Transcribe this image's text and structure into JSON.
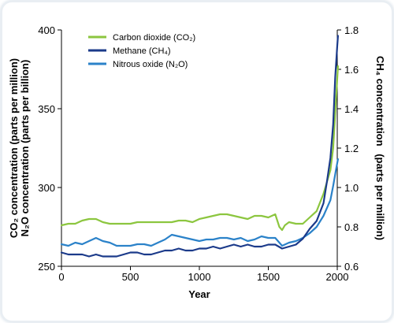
{
  "chart_data": {
    "type": "line",
    "x_label": "Year",
    "y_left_label_line1": "CO₂ concentration (parts per million)",
    "y_left_label_line2": "N₂O concentration (parts per billion)",
    "y_right_label_line1": "CH₄ concentration",
    "y_right_label_line2": "(parts per million)",
    "x_range": [
      0,
      2000
    ],
    "y_left_range": [
      250,
      400
    ],
    "y_right_range": [
      0.6,
      1.8
    ],
    "x_ticks": [
      "0",
      "500",
      "1000",
      "1500",
      "2000"
    ],
    "y_left_ticks": [
      "250",
      "300",
      "350",
      "400"
    ],
    "y_right_ticks": [
      "0.6",
      "0.8",
      "1.0",
      "1.2",
      "1.4",
      "1.6",
      "1.8"
    ],
    "legend_position": "top-left",
    "grid": false,
    "series": [
      {
        "name": "Carbon dioxide (CO₂)",
        "axis": "left",
        "color": "#8cc63f",
        "points": [
          [
            0,
            276
          ],
          [
            50,
            277
          ],
          [
            100,
            277
          ],
          [
            150,
            279
          ],
          [
            200,
            280
          ],
          [
            250,
            280
          ],
          [
            300,
            278
          ],
          [
            350,
            277
          ],
          [
            400,
            277
          ],
          [
            450,
            277
          ],
          [
            500,
            277
          ],
          [
            550,
            278
          ],
          [
            600,
            278
          ],
          [
            650,
            278
          ],
          [
            700,
            278
          ],
          [
            750,
            278
          ],
          [
            800,
            278
          ],
          [
            850,
            279
          ],
          [
            900,
            279
          ],
          [
            950,
            278
          ],
          [
            1000,
            280
          ],
          [
            1050,
            281
          ],
          [
            1100,
            282
          ],
          [
            1150,
            283
          ],
          [
            1200,
            283
          ],
          [
            1250,
            282
          ],
          [
            1300,
            281
          ],
          [
            1350,
            280
          ],
          [
            1400,
            282
          ],
          [
            1450,
            282
          ],
          [
            1500,
            281
          ],
          [
            1550,
            283
          ],
          [
            1580,
            275
          ],
          [
            1600,
            273
          ],
          [
            1620,
            276
          ],
          [
            1650,
            278
          ],
          [
            1700,
            277
          ],
          [
            1750,
            277
          ],
          [
            1800,
            281
          ],
          [
            1850,
            285
          ],
          [
            1900,
            296
          ],
          [
            1950,
            311
          ],
          [
            1970,
            325
          ],
          [
            1990,
            355
          ],
          [
            2005,
            377
          ]
        ]
      },
      {
        "name": "Methane (CH₄)",
        "axis": "right",
        "color": "#1b3a8a",
        "points": [
          [
            0,
            0.67
          ],
          [
            50,
            0.66
          ],
          [
            100,
            0.66
          ],
          [
            150,
            0.66
          ],
          [
            200,
            0.65
          ],
          [
            250,
            0.66
          ],
          [
            300,
            0.65
          ],
          [
            350,
            0.65
          ],
          [
            400,
            0.65
          ],
          [
            450,
            0.66
          ],
          [
            500,
            0.67
          ],
          [
            550,
            0.67
          ],
          [
            600,
            0.66
          ],
          [
            650,
            0.66
          ],
          [
            700,
            0.67
          ],
          [
            750,
            0.68
          ],
          [
            800,
            0.68
          ],
          [
            850,
            0.69
          ],
          [
            900,
            0.68
          ],
          [
            950,
            0.68
          ],
          [
            1000,
            0.69
          ],
          [
            1050,
            0.69
          ],
          [
            1100,
            0.7
          ],
          [
            1150,
            0.69
          ],
          [
            1200,
            0.7
          ],
          [
            1250,
            0.71
          ],
          [
            1300,
            0.7
          ],
          [
            1350,
            0.71
          ],
          [
            1400,
            0.7
          ],
          [
            1450,
            0.7
          ],
          [
            1500,
            0.71
          ],
          [
            1550,
            0.71
          ],
          [
            1600,
            0.69
          ],
          [
            1650,
            0.7
          ],
          [
            1700,
            0.71
          ],
          [
            1750,
            0.74
          ],
          [
            1800,
            0.79
          ],
          [
            1850,
            0.83
          ],
          [
            1900,
            0.92
          ],
          [
            1925,
            1.03
          ],
          [
            1950,
            1.15
          ],
          [
            1970,
            1.32
          ],
          [
            1985,
            1.56
          ],
          [
            2000,
            1.72
          ],
          [
            2005,
            1.77
          ]
        ]
      },
      {
        "name": "Nitrous oxide (N₂O)",
        "axis": "left",
        "color": "#2b82c9",
        "points": [
          [
            0,
            264
          ],
          [
            50,
            263
          ],
          [
            100,
            265
          ],
          [
            150,
            264
          ],
          [
            200,
            266
          ],
          [
            250,
            268
          ],
          [
            300,
            266
          ],
          [
            350,
            265
          ],
          [
            400,
            263
          ],
          [
            450,
            263
          ],
          [
            500,
            263
          ],
          [
            550,
            264
          ],
          [
            600,
            264
          ],
          [
            650,
            263
          ],
          [
            700,
            265
          ],
          [
            750,
            267
          ],
          [
            800,
            270
          ],
          [
            850,
            269
          ],
          [
            900,
            268
          ],
          [
            950,
            267
          ],
          [
            1000,
            266
          ],
          [
            1050,
            267
          ],
          [
            1100,
            267
          ],
          [
            1150,
            268
          ],
          [
            1200,
            268
          ],
          [
            1250,
            267
          ],
          [
            1300,
            268
          ],
          [
            1350,
            266
          ],
          [
            1400,
            267
          ],
          [
            1450,
            269
          ],
          [
            1500,
            268
          ],
          [
            1550,
            268
          ],
          [
            1600,
            263
          ],
          [
            1650,
            265
          ],
          [
            1700,
            266
          ],
          [
            1750,
            268
          ],
          [
            1800,
            271
          ],
          [
            1850,
            275
          ],
          [
            1900,
            282
          ],
          [
            1950,
            292
          ],
          [
            1970,
            301
          ],
          [
            1990,
            311
          ],
          [
            2005,
            318
          ]
        ]
      }
    ]
  }
}
